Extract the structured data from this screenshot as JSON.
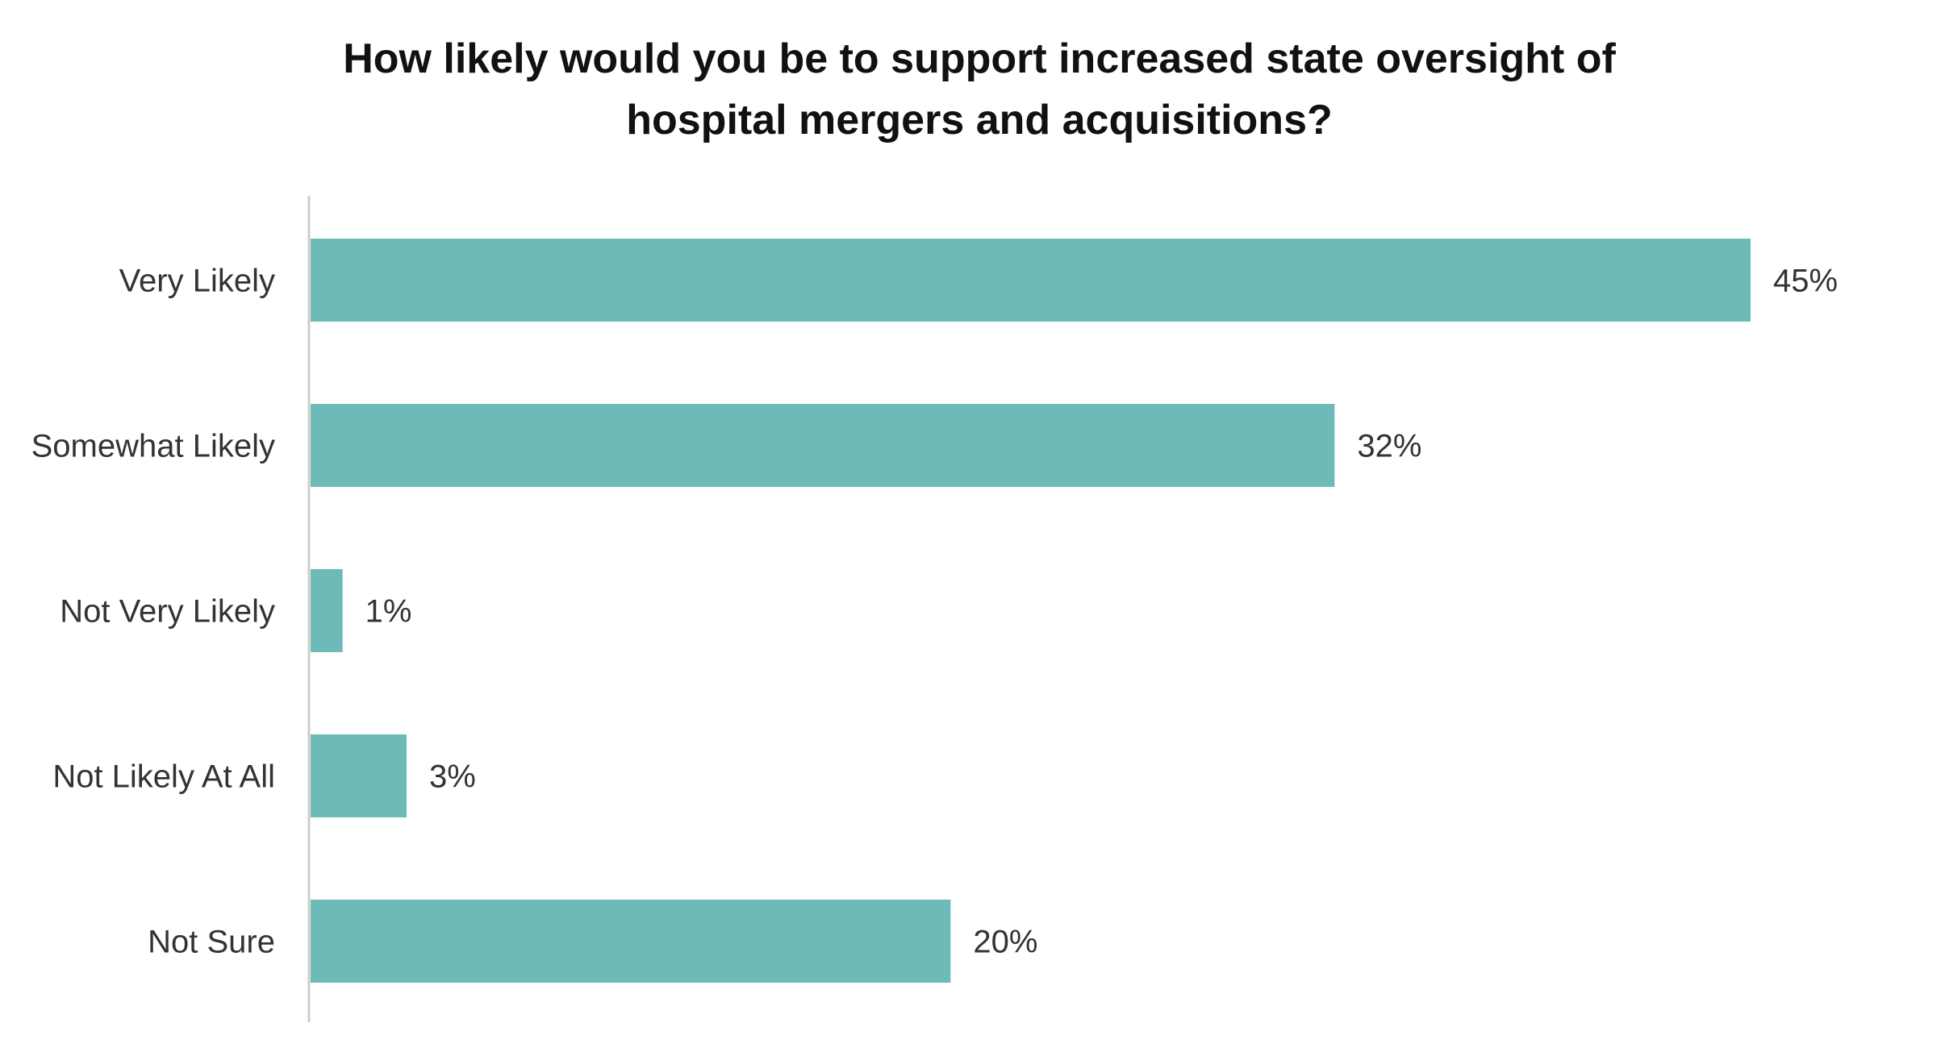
{
  "chart_data": {
    "type": "bar",
    "orientation": "horizontal",
    "title_lines": [
      "How likely would you be to support increased state oversight of",
      "hospital mergers and acquisitions?"
    ],
    "categories": [
      "Very Likely",
      "Somewhat Likely",
      "Not Very Likely",
      "Not Likely At All",
      "Not Sure"
    ],
    "values": [
      45,
      32,
      1,
      3,
      20
    ],
    "value_labels": [
      "45%",
      "32%",
      "1%",
      "3%",
      "20%"
    ],
    "unit": "%",
    "xlim": [
      0,
      45
    ],
    "grid": false,
    "legend": "none",
    "bar_color": "#6cbbb8",
    "axis_color": "#cccccc"
  }
}
